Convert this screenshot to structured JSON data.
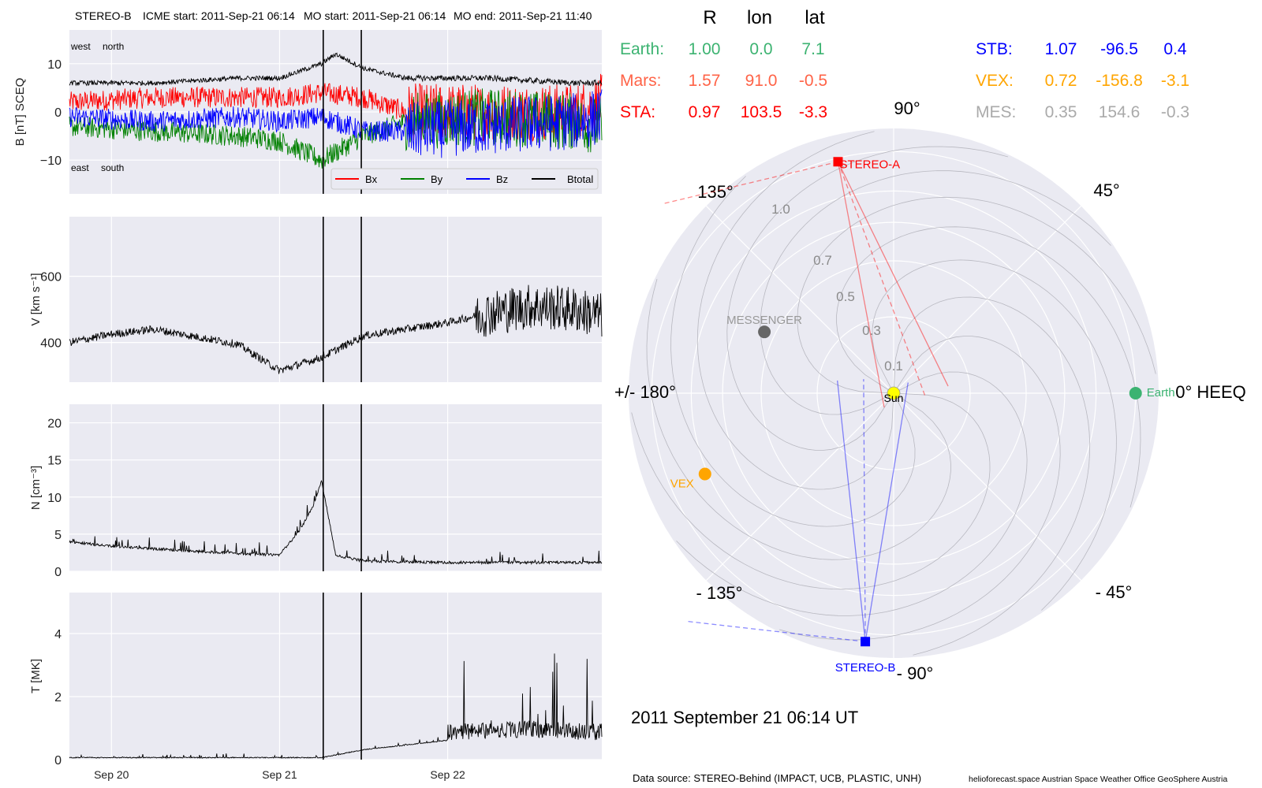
{
  "header": {
    "spacecraft": "STEREO-B",
    "icme_start": "ICME start: 2011-Sep-21 06:14",
    "mo_start": "MO start: 2011-Sep-21 06:14",
    "mo_end": "MO end: 2011-Sep-21 11:40"
  },
  "date_label": "2011 September 21  06:14 UT",
  "footer": {
    "source": "Data source: STEREO-Behind (IMPACT, UCB, PLASTIC, UNH)",
    "credits": "helioforecast.space   Austrian Space Weather Office   GeoSphere Austria"
  },
  "position_table": {
    "headers": [
      "R",
      "lon",
      "lat"
    ],
    "rows": [
      {
        "name": "Earth:",
        "R": "1.00",
        "lon": "0.0",
        "lat": "7.1",
        "color": "#3cb371"
      },
      {
        "name": "Mars:",
        "R": "1.57",
        "lon": "91.0",
        "lat": "-0.5",
        "color": "#ff6347"
      },
      {
        "name": "STA:",
        "R": "0.97",
        "lon": "103.5",
        "lat": "-3.3",
        "color": "#ff0000"
      },
      {
        "name": "STB:",
        "R": "1.07",
        "lon": "-96.5",
        "lat": "0.4",
        "color": "#0000ff"
      },
      {
        "name": "VEX:",
        "R": "0.72",
        "lon": "-156.8",
        "lat": "-3.1",
        "color": "#ffa500"
      },
      {
        "name": "MES:",
        "R": "0.35",
        "lon": "154.6",
        "lat": "-0.3",
        "color": "#aaaaaa"
      }
    ]
  },
  "chart_data": [
    {
      "type": "line",
      "panel": "magnetic-field",
      "ylabel": "B [nT] SCEQ",
      "yticks": [
        -10,
        0,
        10
      ],
      "ylim": [
        -17,
        17
      ],
      "x_range": [
        "2011-09-19 18:00",
        "2011-09-22 22:00"
      ],
      "xticks": [
        "Sep 20",
        "Sep 21",
        "Sep 22"
      ],
      "annotations": [
        "west",
        "north",
        "east",
        "south"
      ],
      "legend": "lower-right",
      "series": [
        {
          "name": "Bx",
          "color": "#ff0000",
          "x": [
            "2011-09-19 18:00",
            "2011-09-20 06:00",
            "2011-09-20 18:00",
            "2011-09-21 00:00",
            "2011-09-21 06:00",
            "2011-09-21 12:00",
            "2011-09-21 18:00",
            "2011-09-22 06:00",
            "2011-09-22 18:00",
            "2011-09-22 22:00"
          ],
          "values": [
            2,
            3,
            3,
            3,
            4,
            3,
            0,
            0,
            0,
            2
          ]
        },
        {
          "name": "By",
          "color": "#008000",
          "x": [
            "2011-09-19 18:00",
            "2011-09-20 06:00",
            "2011-09-20 18:00",
            "2011-09-21 00:00",
            "2011-09-21 06:00",
            "2011-09-21 12:00",
            "2011-09-21 18:00",
            "2011-09-22 06:00",
            "2011-09-22 18:00",
            "2011-09-22 22:00"
          ],
          "values": [
            -3,
            -4,
            -5,
            -6,
            -10,
            -5,
            -2,
            -1,
            -2,
            -3
          ]
        },
        {
          "name": "Bz",
          "color": "#0000ff",
          "x": [
            "2011-09-19 18:00",
            "2011-09-20 06:00",
            "2011-09-20 18:00",
            "2011-09-21 00:00",
            "2011-09-21 06:00",
            "2011-09-21 12:00",
            "2011-09-21 18:00",
            "2011-09-22 06:00",
            "2011-09-22 18:00",
            "2011-09-22 22:00"
          ],
          "values": [
            -1,
            -2,
            -1,
            -2,
            -1,
            -4,
            -4,
            -3,
            -2,
            -1
          ]
        },
        {
          "name": "Btotal",
          "color": "#000000",
          "x": [
            "2011-09-19 18:00",
            "2011-09-20 06:00",
            "2011-09-20 18:00",
            "2011-09-21 00:00",
            "2011-09-21 06:00",
            "2011-09-21 08:00",
            "2011-09-21 12:00",
            "2011-09-21 18:00",
            "2011-09-22 06:00",
            "2011-09-22 18:00",
            "2011-09-22 22:00"
          ],
          "values": [
            6,
            6,
            7,
            7,
            10,
            12,
            9,
            7,
            7,
            6,
            6
          ]
        }
      ]
    },
    {
      "type": "line",
      "panel": "speed",
      "ylabel": "V [km s⁻¹]",
      "yticks": [
        400,
        600
      ],
      "ylim": [
        280,
        780
      ],
      "series": [
        {
          "color": "#000000",
          "x": [
            "2011-09-19 18:00",
            "2011-09-20 00:00",
            "2011-09-20 06:00",
            "2011-09-20 18:00",
            "2011-09-21 00:00",
            "2011-09-21 06:00",
            "2011-09-21 12:00",
            "2011-09-21 18:00",
            "2011-09-22 00:00",
            "2011-09-22 06:00",
            "2011-09-22 12:00",
            "2011-09-22 18:00",
            "2011-09-22 22:00"
          ],
          "values": [
            400,
            425,
            440,
            395,
            315,
            355,
            420,
            440,
            460,
            490,
            510,
            500,
            480
          ]
        }
      ]
    },
    {
      "type": "line",
      "panel": "density",
      "ylabel": "N [cm⁻³]",
      "yticks": [
        0,
        5,
        10,
        15,
        20
      ],
      "ylim": [
        0,
        22.5
      ],
      "series": [
        {
          "color": "#000000",
          "x": [
            "2011-09-19 18:00",
            "2011-09-20 00:00",
            "2011-09-20 12:00",
            "2011-09-21 00:00",
            "2011-09-21 03:00",
            "2011-09-21 05:00",
            "2011-09-21 06:00",
            "2011-09-21 08:00",
            "2011-09-21 12:00",
            "2011-09-22 00:00",
            "2011-09-22 12:00",
            "2011-09-22 22:00"
          ],
          "values": [
            3.8,
            3.2,
            2.5,
            2.0,
            5.5,
            9,
            12,
            2.0,
            1.2,
            1.0,
            1.0,
            1.0
          ]
        }
      ]
    },
    {
      "type": "line",
      "panel": "temperature",
      "ylabel": "T [MK]",
      "yticks": [
        0,
        2,
        4
      ],
      "ylim": [
        0,
        5.3
      ],
      "xticks": [
        "Sep 20",
        "Sep 21",
        "Sep 22"
      ],
      "series": [
        {
          "color": "#000000",
          "x": [
            "2011-09-19 18:00",
            "2011-09-20 12:00",
            "2011-09-21 06:00",
            "2011-09-21 12:00",
            "2011-09-22 00:00",
            "2011-09-22 12:00",
            "2011-09-22 22:00"
          ],
          "values": [
            0.05,
            0.05,
            0.05,
            0.3,
            0.6,
            0.7,
            0.6
          ]
        }
      ]
    },
    {
      "type": "scatter",
      "panel": "polar-orbit-plot",
      "coordinate_system": "0° HEEQ",
      "angle_labels": [
        "0° HEEQ",
        "45°",
        "90°",
        "135°",
        "+/- 180°",
        "- 135°",
        "- 90°",
        "- 45°"
      ],
      "radial_labels": [
        "0.1",
        "0.3",
        "0.5",
        "0.7",
        "1.0"
      ],
      "bodies": [
        {
          "name": "Sun",
          "r": 0.0,
          "lon": 0.0,
          "color": "#ffff00"
        },
        {
          "name": "Earth",
          "r": 1.0,
          "lon": 0.0,
          "color": "#3cb371"
        },
        {
          "name": "STEREO-A",
          "r": 0.97,
          "lon": 103.5,
          "color": "#ff0000"
        },
        {
          "name": "STEREO-B",
          "r": 1.07,
          "lon": -96.5,
          "color": "#0000ff"
        },
        {
          "name": "VEX",
          "r": 0.72,
          "lon": -156.8,
          "color": "#ffa500"
        },
        {
          "name": "MESSENGER",
          "r": 0.35,
          "lon": 154.6,
          "color": "#666666"
        }
      ]
    }
  ]
}
